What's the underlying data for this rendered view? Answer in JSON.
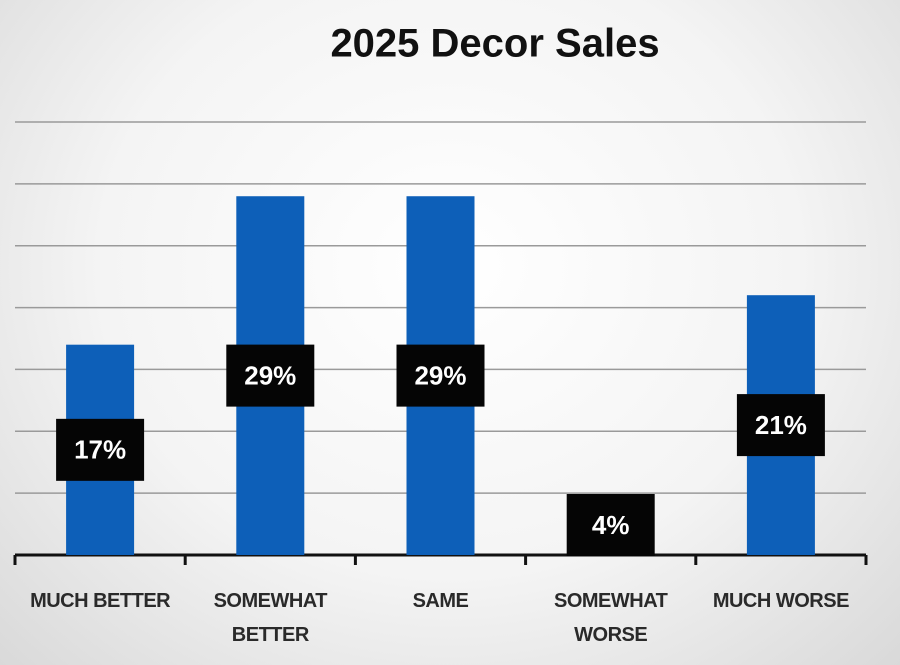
{
  "chart_data": {
    "type": "bar",
    "title": "2025 Decor Sales",
    "categories": [
      "MUCH BETTER",
      "SOMEWHAT BETTER",
      "SAME",
      "SOMEWHAT WORSE",
      "MUCH WORSE"
    ],
    "values": [
      17,
      29,
      29,
      4,
      21
    ],
    "value_labels": [
      "17%",
      "29%",
      "29%",
      "4%",
      "21%"
    ],
    "color": "#0d5fb8",
    "ylim": [
      0,
      35
    ],
    "yticks": [
      0,
      5,
      10,
      15,
      20,
      25,
      30,
      35
    ],
    "grid": true
  }
}
